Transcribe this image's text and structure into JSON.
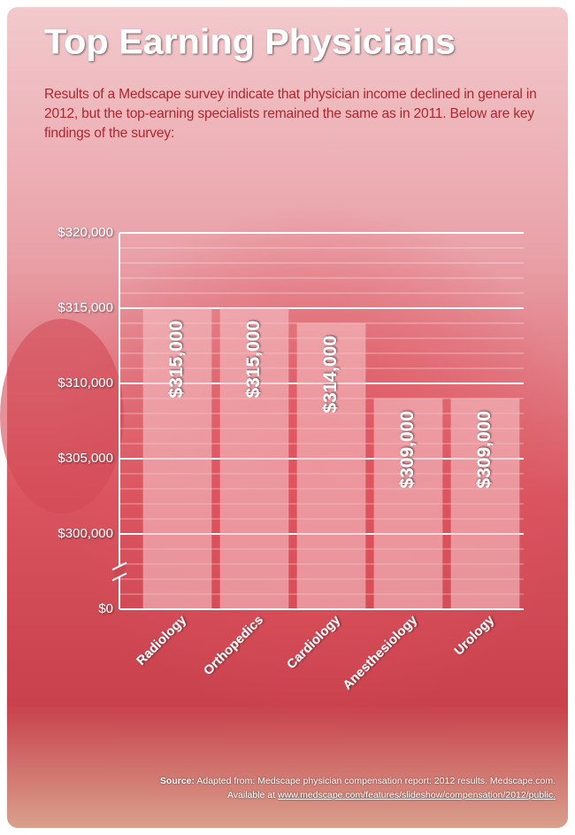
{
  "chart_data": {
    "type": "bar",
    "title": "Top Earning Physicians",
    "subtitle": "Results of a Medscape survey indicate that physician income declined in general in 2012, but the top-earning specialists remained the same as in 2011. Below are key findings of the survey:",
    "categories": [
      "Radiology",
      "Orthopedics",
      "Cardiology",
      "Anesthesiology",
      "Urology"
    ],
    "values": [
      315000,
      315000,
      314000,
      309000,
      309000
    ],
    "value_labels": [
      "$315,000",
      "$315,000",
      "$314,000",
      "$309,000",
      "$309,000"
    ],
    "color": "#f3c0c4",
    "ylim": [
      0,
      320000
    ],
    "yticks": [
      {
        "value": 320000,
        "label": "$320,000"
      },
      {
        "value": 315000,
        "label": "$315,000"
      },
      {
        "value": 310000,
        "label": "$310,000"
      },
      {
        "value": 305000,
        "label": "$305,000"
      },
      {
        "value": 300000,
        "label": "$300,000"
      },
      {
        "value": 0,
        "label": "$0"
      }
    ],
    "axis_break": true,
    "grid": true,
    "source_label": "Source:",
    "source": "Adapted from: Medscape physician compensation report: 2012 results. Medscape.com.",
    "source_available": "Available at",
    "source_url": "www.medscape.com/features/slideshow/compensation/2012/public."
  }
}
